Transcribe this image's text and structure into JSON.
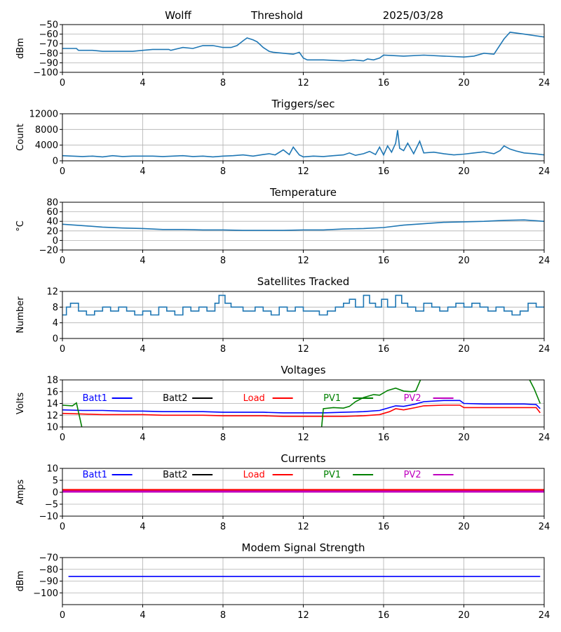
{
  "header": {
    "station": "Wolff",
    "label": "Threshold",
    "date": "2025/03/28"
  },
  "colors": {
    "series_default": "#1f77b4",
    "batt1": "#0000ff",
    "batt2": "#000000",
    "load": "#ff0000",
    "pv1": "#008000",
    "pv2": "#bf00bf",
    "grid": "#b0b0b0"
  },
  "chart_data": [
    {
      "id": "threshold",
      "type": "line",
      "title": "",
      "ylabel": "dBm",
      "xlim": [
        0,
        24
      ],
      "ylim": [
        -100,
        -50
      ],
      "grid": true,
      "xticks": [
        0,
        4,
        8,
        12,
        16,
        20,
        24
      ],
      "yticks": [
        -100,
        -90,
        -80,
        -70,
        -60,
        -50
      ],
      "ytick_labels": [
        "−100",
        "−90",
        "−80",
        "−70",
        "−60",
        "−50"
      ],
      "series": [
        {
          "color": "series_default",
          "x": [
            0,
            0.7,
            0.8,
            1.5,
            2,
            3,
            3.5,
            4,
            4.5,
            5,
            5.3,
            5.4,
            6,
            6.5,
            7,
            7.5,
            8,
            8.4,
            8.7,
            9,
            9.2,
            9.5,
            9.7,
            10,
            10.3,
            10.5,
            11,
            11.5,
            11.8,
            12,
            12.2,
            13,
            14,
            14.5,
            15,
            15.2,
            15.5,
            15.8,
            16,
            17,
            18,
            19,
            20,
            20.5,
            21,
            21.5,
            22,
            22.3,
            23,
            24
          ],
          "values": [
            -75,
            -75,
            -77,
            -77,
            -78,
            -78,
            -78,
            -77,
            -76,
            -76,
            -76,
            -77,
            -74,
            -75,
            -72,
            -72,
            -74,
            -74,
            -72,
            -67,
            -64,
            -66,
            -68,
            -74,
            -78,
            -79,
            -80,
            -81,
            -79,
            -85,
            -87,
            -87,
            -88,
            -87,
            -88,
            -86,
            -87,
            -85,
            -82,
            -83,
            -82,
            -83,
            -84,
            -83,
            -80,
            -81,
            -65,
            -58,
            -60,
            -63
          ]
        }
      ]
    },
    {
      "id": "triggers",
      "type": "line",
      "title": "Triggers/sec",
      "ylabel": "Count",
      "xlim": [
        0,
        24
      ],
      "ylim": [
        0,
        12000
      ],
      "grid": true,
      "xticks": [
        0,
        4,
        8,
        12,
        16,
        20,
        24
      ],
      "yticks": [
        0,
        4000,
        8000,
        12000
      ],
      "ytick_labels": [
        "0",
        "4000",
        "8000",
        "12000"
      ],
      "series": [
        {
          "color": "series_default",
          "x": [
            0,
            0.5,
            1,
            1.5,
            2,
            2.5,
            3,
            3.5,
            4,
            4.5,
            5,
            5.5,
            6,
            6.5,
            7,
            7.5,
            8,
            8.5,
            9,
            9.5,
            10,
            10.3,
            10.6,
            11,
            11.3,
            11.5,
            11.8,
            12,
            12.5,
            13,
            13.5,
            14,
            14.3,
            14.6,
            15,
            15.3,
            15.6,
            15.8,
            16,
            16.2,
            16.4,
            16.6,
            16.7,
            16.8,
            17,
            17.2,
            17.5,
            17.8,
            18,
            18.5,
            19,
            19.5,
            20,
            20.5,
            21,
            21.5,
            21.8,
            22,
            22.3,
            22.6,
            23,
            23.5,
            24
          ],
          "values": [
            1300,
            1200,
            1100,
            1200,
            1000,
            1300,
            1100,
            1200,
            1200,
            1200,
            1100,
            1200,
            1300,
            1100,
            1200,
            1000,
            1200,
            1300,
            1500,
            1200,
            1600,
            1800,
            1500,
            2800,
            1600,
            3500,
            1500,
            1000,
            1200,
            1100,
            1300,
            1500,
            2000,
            1400,
            1800,
            2400,
            1600,
            3500,
            1500,
            3800,
            2200,
            4500,
            7800,
            3200,
            2600,
            4500,
            1800,
            5000,
            2000,
            2200,
            1800,
            1500,
            1700,
            2000,
            2300,
            1800,
            2600,
            3800,
            3000,
            2500,
            2000,
            1800,
            1500
          ]
        }
      ]
    },
    {
      "id": "temperature",
      "type": "line",
      "title": "Temperature",
      "ylabel": "°C",
      "xlim": [
        0,
        24
      ],
      "ylim": [
        -20,
        80
      ],
      "grid": true,
      "xticks": [
        0,
        4,
        8,
        12,
        16,
        20,
        24
      ],
      "yticks": [
        -20,
        0,
        20,
        40,
        60,
        80
      ],
      "ytick_labels": [
        "−20",
        "0",
        "20",
        "40",
        "60",
        "80"
      ],
      "series": [
        {
          "color": "series_default",
          "x": [
            0,
            1,
            2,
            3,
            4,
            5,
            6,
            7,
            8,
            9,
            10,
            11,
            12,
            13,
            14,
            15,
            16,
            17,
            18,
            19,
            20,
            21,
            22,
            23,
            24
          ],
          "values": [
            34,
            31,
            28,
            26,
            25,
            23,
            23,
            22,
            22,
            21,
            21,
            21,
            22,
            22,
            24,
            25,
            27,
            32,
            35,
            38,
            39,
            40,
            42,
            43,
            40
          ]
        }
      ]
    },
    {
      "id": "satellites",
      "type": "line",
      "title": "Satellites Tracked",
      "ylabel": "Number",
      "xlim": [
        0,
        24
      ],
      "ylim": [
        0,
        12
      ],
      "grid": true,
      "xticks": [
        0,
        4,
        8,
        12,
        16,
        20,
        24
      ],
      "yticks": [
        0,
        4,
        8,
        12
      ],
      "ytick_labels": [
        "0",
        "4",
        "8",
        "12"
      ],
      "series": [
        {
          "color": "series_default",
          "step": true,
          "x": [
            0,
            0.2,
            0.4,
            0.8,
            1.2,
            1.6,
            2,
            2.4,
            2.8,
            3.2,
            3.6,
            4,
            4.4,
            4.8,
            5.2,
            5.6,
            6,
            6.4,
            6.8,
            7.2,
            7.6,
            7.8,
            8.1,
            8.4,
            9,
            9.6,
            10,
            10.4,
            10.8,
            11.2,
            11.6,
            12,
            12.4,
            12.8,
            13.2,
            13.6,
            14,
            14.3,
            14.6,
            15,
            15.3,
            15.6,
            15.9,
            16.2,
            16.6,
            16.9,
            17.2,
            17.6,
            18,
            18.4,
            18.8,
            19.2,
            19.6,
            20,
            20.4,
            20.8,
            21.2,
            21.6,
            22,
            22.4,
            22.8,
            23.2,
            23.6,
            24
          ],
          "values": [
            6,
            8,
            9,
            7,
            6,
            7,
            8,
            7,
            8,
            7,
            6,
            7,
            6,
            8,
            7,
            6,
            8,
            7,
            8,
            7,
            9,
            11,
            9,
            8,
            7,
            8,
            7,
            6,
            8,
            7,
            8,
            7,
            7,
            6,
            7,
            8,
            9,
            10,
            8,
            11,
            9,
            8,
            10,
            8,
            11,
            9,
            8,
            7,
            9,
            8,
            7,
            8,
            9,
            8,
            9,
            8,
            7,
            8,
            7,
            6,
            7,
            9,
            8,
            8
          ]
        }
      ]
    },
    {
      "id": "voltages",
      "type": "line",
      "title": "Voltages",
      "ylabel": "Volts",
      "xlim": [
        0,
        24
      ],
      "ylim": [
        10,
        18
      ],
      "grid": true,
      "xticks": [
        0,
        4,
        8,
        12,
        16,
        20,
        24
      ],
      "yticks": [
        10,
        12,
        14,
        16,
        18
      ],
      "ytick_labels": [
        "10",
        "12",
        "14",
        "16",
        "18"
      ],
      "legend": [
        {
          "label": "Batt1",
          "color": "batt1",
          "x": 1
        },
        {
          "label": "Batt2",
          "color": "batt2",
          "x": 5
        },
        {
          "label": "Load",
          "color": "load",
          "x": 9
        },
        {
          "label": "PV1",
          "color": "pv1",
          "x": 13
        },
        {
          "label": "PV2",
          "color": "pv2",
          "x": 17
        }
      ],
      "series": [
        {
          "name": "Batt1",
          "color": "batt1",
          "x": [
            0,
            1,
            2,
            3,
            4,
            5,
            6,
            7,
            8,
            9,
            10,
            11,
            12,
            13,
            14,
            15,
            15.8,
            16.3,
            16.6,
            17,
            17.6,
            18,
            19,
            19.8,
            20,
            21,
            22,
            23,
            23.6,
            23.8
          ],
          "values": [
            12.9,
            12.8,
            12.8,
            12.7,
            12.7,
            12.6,
            12.6,
            12.6,
            12.5,
            12.5,
            12.5,
            12.4,
            12.4,
            12.4,
            12.5,
            12.6,
            12.8,
            13.3,
            13.6,
            13.5,
            13.9,
            14.3,
            14.5,
            14.5,
            14.0,
            13.9,
            13.9,
            13.9,
            13.8,
            13.1
          ]
        },
        {
          "name": "Load",
          "color": "load",
          "x": [
            0,
            1,
            2,
            3,
            4,
            5,
            6,
            7,
            8,
            9,
            10,
            11,
            12,
            13,
            14,
            15,
            15.8,
            16.3,
            16.6,
            17,
            17.6,
            18,
            19,
            19.8,
            20,
            21,
            22,
            23,
            23.6,
            23.8
          ],
          "values": [
            12.3,
            12.2,
            12.1,
            12.1,
            12.1,
            12.0,
            12.0,
            12.0,
            11.9,
            11.9,
            11.9,
            11.8,
            11.8,
            11.8,
            11.8,
            11.9,
            12.1,
            12.6,
            13.1,
            12.9,
            13.3,
            13.6,
            13.7,
            13.7,
            13.3,
            13.3,
            13.3,
            13.3,
            13.3,
            12.4
          ]
        },
        {
          "name": "PV1",
          "color": "pv1",
          "x": [
            0,
            0.5,
            0.7,
            1.0,
            12.9,
            13.0,
            13.5,
            14,
            14.3,
            14.6,
            15,
            15.5,
            15.8,
            16.2,
            16.6,
            17,
            17.4,
            17.6,
            17.9,
            23.2,
            23.5,
            23.8
          ],
          "values": [
            13.7,
            13.6,
            14.1,
            9.5,
            9.5,
            13.1,
            13.3,
            13.2,
            13.5,
            14.3,
            15.0,
            15.5,
            15.4,
            16.2,
            16.6,
            16.1,
            16.0,
            16.1,
            18.5,
            18.5,
            16.5,
            14.0
          ]
        }
      ]
    },
    {
      "id": "currents",
      "type": "line",
      "title": "Currents",
      "ylabel": "Amps",
      "xlim": [
        0,
        24
      ],
      "ylim": [
        -10,
        10
      ],
      "grid": true,
      "xticks": [
        0,
        4,
        8,
        12,
        16,
        20,
        24
      ],
      "yticks": [
        -10,
        -5,
        0,
        5,
        10
      ],
      "ytick_labels": [
        "−10",
        "−5",
        "0",
        "5",
        "10"
      ],
      "legend": [
        {
          "label": "Batt1",
          "color": "batt1",
          "x": 1
        },
        {
          "label": "Batt2",
          "color": "batt2",
          "x": 5
        },
        {
          "label": "Load",
          "color": "load",
          "x": 9
        },
        {
          "label": "PV1",
          "color": "pv1",
          "x": 13
        },
        {
          "label": "PV2",
          "color": "pv2",
          "x": 17
        }
      ],
      "series": [
        {
          "name": "Load",
          "color": "load",
          "x": [
            0,
            24
          ],
          "values": [
            0.9,
            0.9
          ]
        },
        {
          "name": "PV2",
          "color": "pv2",
          "x": [
            0,
            24
          ],
          "values": [
            0.3,
            0.3
          ]
        }
      ]
    },
    {
      "id": "modem",
      "type": "line",
      "title": "Modem Signal Strength",
      "ylabel": "dBm",
      "xlim": [
        0,
        24
      ],
      "ylim": [
        -110,
        -70
      ],
      "grid": true,
      "xticks": [
        0,
        4,
        8,
        12,
        16,
        20,
        24
      ],
      "yticks": [
        -100,
        -90,
        -80,
        -70
      ],
      "ytick_labels": [
        "−100",
        "−90",
        "−80",
        "−70"
      ],
      "series": [
        {
          "color": "batt1",
          "x": [
            0.3,
            23.8
          ],
          "values": [
            -86,
            -86
          ]
        }
      ]
    }
  ]
}
